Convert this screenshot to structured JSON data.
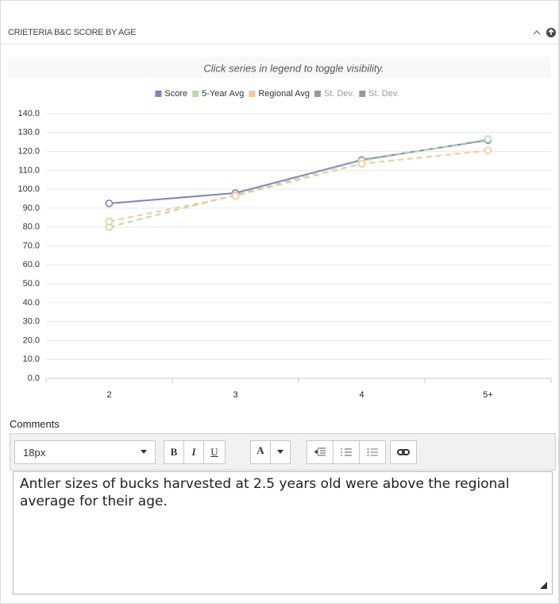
{
  "panel": {
    "title": "CRIETERIA B&C SCORE BY AGE"
  },
  "chart_data": {
    "type": "line",
    "subtitle": "Click series in legend to toggle visibility.",
    "categories": [
      "2",
      "3",
      "4",
      "5+"
    ],
    "series": [
      {
        "name": "Score",
        "color": "#7f86b8",
        "dashed": false,
        "values": [
          92.5,
          98,
          115.5,
          126
        ]
      },
      {
        "name": "5-Year Avg",
        "color": "#b9d9aa",
        "dashed": true,
        "values": [
          80,
          97,
          115,
          126.5
        ]
      },
      {
        "name": "Regional Avg",
        "color": "#f5c59b",
        "dashed": true,
        "values": [
          83,
          96.5,
          113.5,
          120.5
        ]
      },
      {
        "name": "St. Dev.",
        "color": "#999999",
        "dashed": false,
        "values": [
          null,
          null,
          null,
          null
        ]
      },
      {
        "name": "St. Dev.",
        "color": "#999999",
        "dashed": false,
        "values": [
          null,
          null,
          null,
          null
        ]
      }
    ],
    "ylim": [
      0,
      140
    ],
    "yticks": [
      {
        "value": 0,
        "label": "0.0"
      },
      {
        "value": 10,
        "label": "10.0"
      },
      {
        "value": 20,
        "label": "20.0"
      },
      {
        "value": 30,
        "label": "30.0"
      },
      {
        "value": 40,
        "label": "40.0"
      },
      {
        "value": 50,
        "label": "50.0"
      },
      {
        "value": 60,
        "label": "60.0"
      },
      {
        "value": 70,
        "label": "70.0"
      },
      {
        "value": 80,
        "label": "80.0"
      },
      {
        "value": 90,
        "label": "90.0"
      },
      {
        "value": 100,
        "label": "100.0"
      },
      {
        "value": 110,
        "label": "110.0"
      },
      {
        "value": 120,
        "label": "120.0"
      },
      {
        "value": 130,
        "label": "130.0"
      },
      {
        "value": 140,
        "label": "140.0"
      }
    ],
    "grid": true
  },
  "comments": {
    "label": "Comments",
    "font_size": "18px",
    "bold": "B",
    "italic": "I",
    "underline": "U",
    "font_color": "A",
    "text": "Antler sizes of bucks harvested at 2.5 years old were above the regional average for their age."
  }
}
